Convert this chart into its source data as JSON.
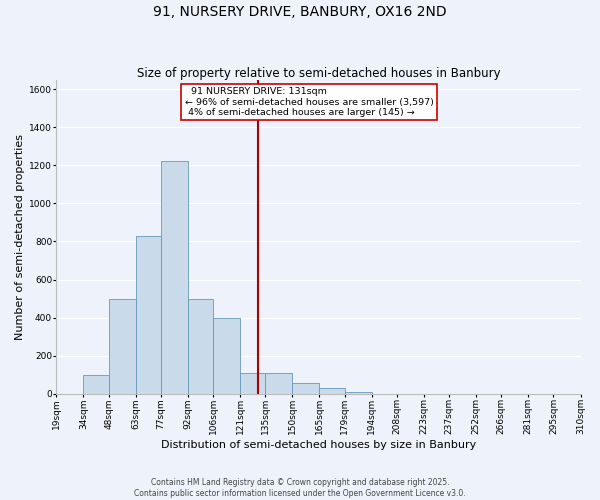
{
  "title": "91, NURSERY DRIVE, BANBURY, OX16 2ND",
  "subtitle": "Size of property relative to semi-detached houses in Banbury",
  "xlabel": "Distribution of semi-detached houses by size in Banbury",
  "ylabel": "Number of semi-detached properties",
  "bin_labels": [
    "19sqm",
    "34sqm",
    "48sqm",
    "63sqm",
    "77sqm",
    "92sqm",
    "106sqm",
    "121sqm",
    "135sqm",
    "150sqm",
    "165sqm",
    "179sqm",
    "194sqm",
    "208sqm",
    "223sqm",
    "237sqm",
    "252sqm",
    "266sqm",
    "281sqm",
    "295sqm",
    "310sqm"
  ],
  "bin_edges": [
    19,
    34,
    48,
    63,
    77,
    92,
    106,
    121,
    135,
    150,
    165,
    179,
    194,
    208,
    223,
    237,
    252,
    266,
    281,
    295,
    310
  ],
  "bar_values": [
    0,
    100,
    500,
    830,
    1220,
    500,
    400,
    110,
    110,
    55,
    30,
    10,
    0,
    0,
    0,
    0,
    0,
    0,
    0,
    0
  ],
  "bar_color": "#c9daea",
  "bar_edge_color": "#6699bb",
  "vline_x": 131,
  "vline_color": "#aa0000",
  "ylim": [
    0,
    1650
  ],
  "yticks": [
    0,
    200,
    400,
    600,
    800,
    1000,
    1200,
    1400,
    1600
  ],
  "annotation_title": "91 NURSERY DRIVE: 131sqm",
  "annotation_line1": "← 96% of semi-detached houses are smaller (3,597)",
  "annotation_line2": "4% of semi-detached houses are larger (145) →",
  "annotation_box_color": "#ffffff",
  "annotation_box_edge": "#cc0000",
  "footnote1": "Contains HM Land Registry data © Crown copyright and database right 2025.",
  "footnote2": "Contains public sector information licensed under the Open Government Licence v3.0.",
  "bg_color": "#eef2fb",
  "grid_color": "#ffffff",
  "title_fontsize": 10,
  "subtitle_fontsize": 8.5,
  "axis_label_fontsize": 8,
  "tick_fontsize": 6.5,
  "footnote_fontsize": 5.5
}
